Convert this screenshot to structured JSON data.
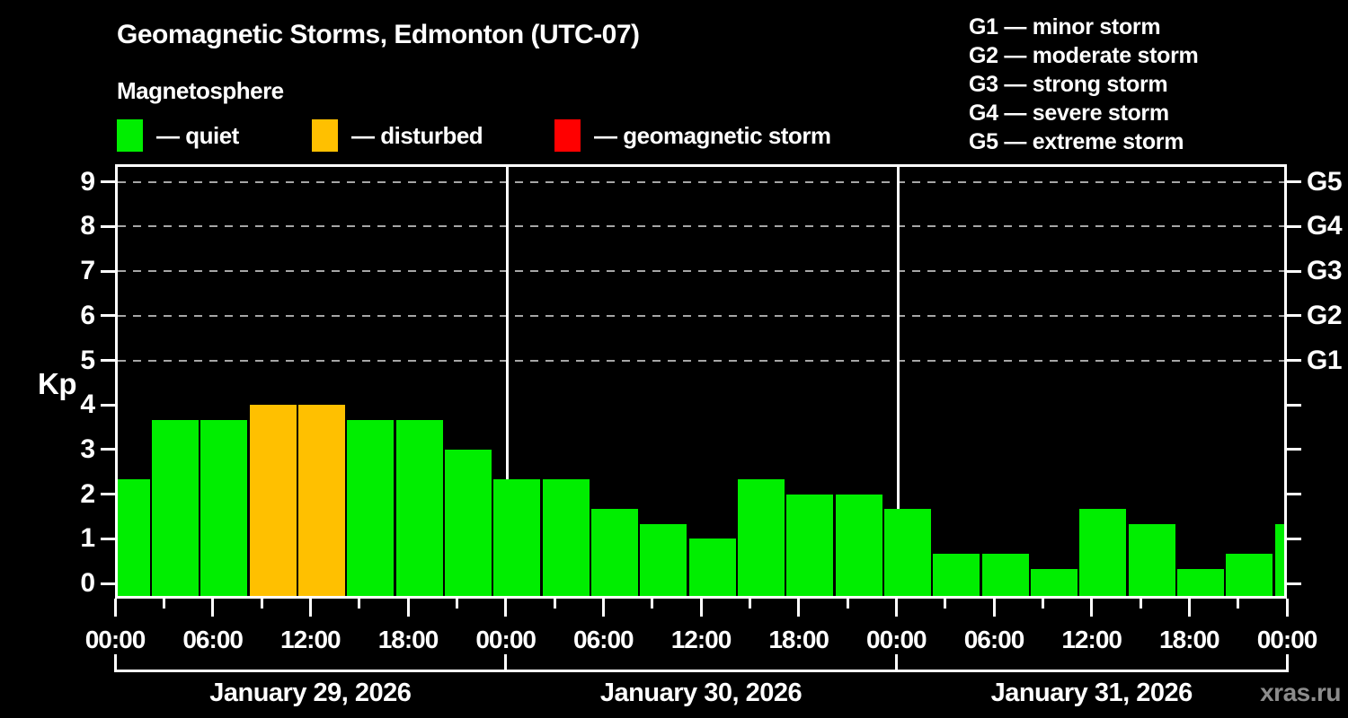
{
  "header": {
    "title": "Geomagnetic Storms, Edmonton (UTC-07)",
    "subtitle": "Magnetosphere",
    "legend": [
      {
        "name": "quiet",
        "label": "— quiet",
        "color": "#00ee00"
      },
      {
        "name": "disturbed",
        "label": "— disturbed",
        "color": "#ffc000"
      },
      {
        "name": "storm",
        "label": "— geomagnetic storm",
        "color": "#ff0000"
      }
    ],
    "g_legend": [
      "G1 — minor storm",
      "G2 — moderate storm",
      "G3 — strong storm",
      "G4 — severe storm",
      "G5 — extreme storm"
    ]
  },
  "watermark": "xras.ru",
  "chart_data": {
    "type": "bar",
    "title": "Geomagnetic Storms, Edmonton (UTC-07)",
    "ylabel": "Kp",
    "ylim": [
      0,
      9.4
    ],
    "yticks": [
      0,
      1,
      2,
      3,
      4,
      5,
      6,
      7,
      8,
      9
    ],
    "right_axis": [
      {
        "value": 5,
        "label": "G1"
      },
      {
        "value": 6,
        "label": "G2"
      },
      {
        "value": 7,
        "label": "G3"
      },
      {
        "value": 8,
        "label": "G4"
      },
      {
        "value": 9,
        "label": "G5"
      }
    ],
    "dashed_gridlines_at": [
      5,
      6,
      7,
      8,
      9
    ],
    "hours_span": 72,
    "bar_interval_hours": 3,
    "day_boundaries_hours": [
      24,
      48
    ],
    "x_tick_labels": [
      {
        "hour": 0,
        "label": "00:00"
      },
      {
        "hour": 6,
        "label": "06:00"
      },
      {
        "hour": 12,
        "label": "12:00"
      },
      {
        "hour": 18,
        "label": "18:00"
      },
      {
        "hour": 24,
        "label": "00:00"
      },
      {
        "hour": 30,
        "label": "06:00"
      },
      {
        "hour": 36,
        "label": "12:00"
      },
      {
        "hour": 42,
        "label": "18:00"
      },
      {
        "hour": 48,
        "label": "00:00"
      },
      {
        "hour": 54,
        "label": "06:00"
      },
      {
        "hour": 60,
        "label": "12:00"
      },
      {
        "hour": 66,
        "label": "18:00"
      },
      {
        "hour": 72,
        "label": "00:00"
      }
    ],
    "days": [
      {
        "date": "January 29, 2026",
        "start_hour": 0,
        "values": [
          2.33,
          3.67,
          3.67,
          4.0,
          4.0,
          3.67,
          3.67,
          3.0
        ]
      },
      {
        "date": "January 30, 2026",
        "start_hour": 24,
        "values": [
          2.33,
          2.33,
          1.67,
          1.33,
          1.0,
          2.33,
          2.0,
          2.0
        ]
      },
      {
        "date": "January 31, 2026",
        "start_hour": 48,
        "values": [
          1.67,
          0.67,
          0.67,
          0.33,
          1.67,
          1.33,
          0.33,
          0.67
        ]
      }
    ],
    "next_period_partial_bar": {
      "hour": 72,
      "value": 1.33
    },
    "thresholds": {
      "disturbed_min": 4,
      "storm_min": 5
    },
    "colors": {
      "quiet": "#00ee00",
      "disturbed": "#ffc000",
      "storm": "#ff0000",
      "axis": "#ffffff",
      "grid": "#a6a6a6",
      "background": "#000000",
      "watermark": "#8c8c8c"
    },
    "legend_position": "top"
  }
}
